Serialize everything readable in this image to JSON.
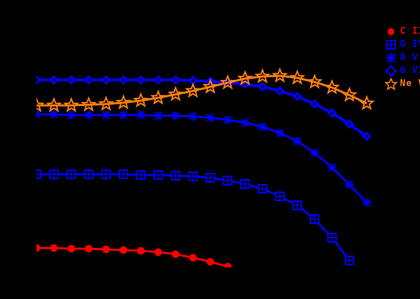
{
  "chart_data": {
    "type": "line",
    "title": "",
    "xlabel": "",
    "ylabel": "",
    "grid": false,
    "legend_position": "upper right (clipped)",
    "note": "Axes, ticks and labels are not visible (black background). Values are read as pixel-space y positions (lower number = higher on chart) at evenly spaced x indices 0..20.",
    "x": [
      0,
      1,
      2,
      3,
      4,
      5,
      6,
      7,
      8,
      9,
      10,
      11,
      12,
      13,
      14,
      15,
      16,
      17,
      18,
      19,
      20
    ],
    "series": [
      {
        "name": "C III",
        "color": "#ff0000",
        "marker": "circle",
        "values": [
          360,
          360,
          361,
          361,
          362,
          363,
          364,
          366,
          369,
          374,
          380,
          387,
          null,
          null,
          null,
          null,
          null,
          null,
          null,
          null,
          null
        ]
      },
      {
        "name": "O IV",
        "color": "#0000ff",
        "marker": "square-grid",
        "values": [
          253,
          253,
          253,
          253,
          253,
          253,
          254,
          254,
          255,
          256,
          258,
          262,
          267,
          274,
          285,
          298,
          318,
          345,
          378,
          null,
          null
        ]
      },
      {
        "name": "O V",
        "color": "#0000ff",
        "marker": "asterisk",
        "values": [
          166,
          166,
          167,
          167,
          167,
          167,
          167,
          168,
          168,
          169,
          171,
          174,
          178,
          184,
          193,
          205,
          222,
          243,
          268,
          294,
          null
        ]
      },
      {
        "name": "O VI",
        "color": "#0000ff",
        "marker": "diamond",
        "values": [
          116,
          116,
          116,
          116,
          116,
          116,
          116,
          116,
          116,
          117,
          118,
          120,
          122,
          126,
          132,
          140,
          151,
          164,
          180,
          198,
          null
        ]
      },
      {
        "name": "Ne VIII",
        "color": "#ff7f0e",
        "marker": "star",
        "values": [
          153,
          153,
          153,
          152,
          151,
          149,
          146,
          142,
          137,
          132,
          126,
          120,
          114,
          111,
          110,
          113,
          119,
          127,
          138,
          150,
          null
        ]
      }
    ]
  },
  "legend": {
    "items": [
      {
        "label": "C III",
        "color": "#ff0000",
        "icon": "circle-icon"
      },
      {
        "label": "O IV",
        "color": "#0000ff",
        "icon": "square-grid-icon"
      },
      {
        "label": "O V",
        "color": "#0000ff",
        "icon": "asterisk-icon"
      },
      {
        "label": "O VI",
        "color": "#0000ff",
        "icon": "diamond-icon"
      },
      {
        "label": "Ne VIII",
        "color": "#ff7f0e",
        "icon": "star-icon"
      }
    ]
  }
}
